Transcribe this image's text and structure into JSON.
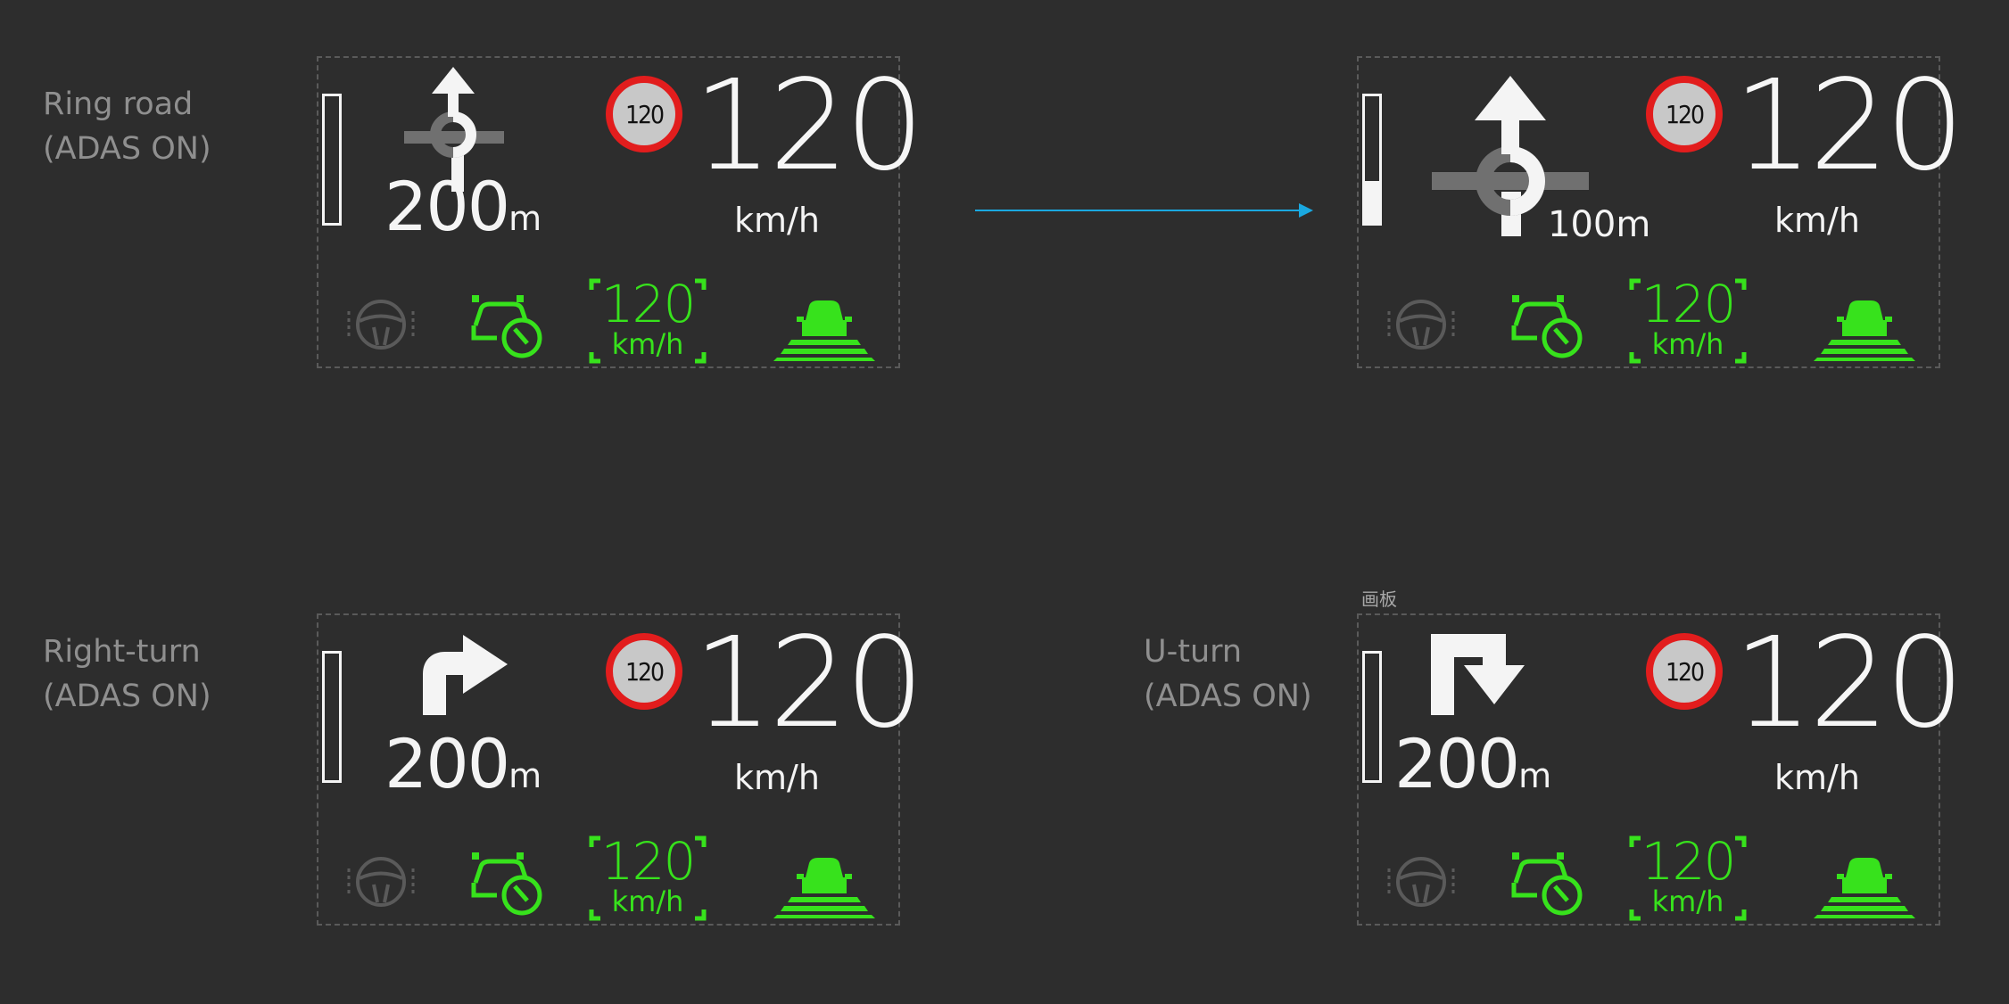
{
  "captions": {
    "ring_road": [
      "Ring road",
      "(ADAS ON)"
    ],
    "right_turn": [
      "Right-turn",
      "(ADAS ON)"
    ],
    "u_turn": [
      "U-turn",
      "(ADAS ON)"
    ]
  },
  "frame_tag": "画板",
  "transition_arrow_color": "#1aa8e0",
  "panels": [
    {
      "id": "ring-road-200",
      "maneuver": "roundabout-straight-icon",
      "distance_value": "200",
      "distance_unit": "m",
      "gauge_fill": 0.0,
      "speed_limit": "120",
      "speed": "120",
      "speed_unit": "km/h",
      "acc_speed": "120",
      "acc_unit": "km/h"
    },
    {
      "id": "ring-road-100",
      "maneuver": "roundabout-straight-icon",
      "distance_text": "100m",
      "gauge_fill": 0.33,
      "speed_limit": "120",
      "speed": "120",
      "speed_unit": "km/h",
      "acc_speed": "120",
      "acc_unit": "km/h"
    },
    {
      "id": "right-turn",
      "maneuver": "right-turn-arrow-icon",
      "distance_value": "200",
      "distance_unit": "m",
      "gauge_fill": 0.0,
      "speed_limit": "120",
      "speed": "120",
      "speed_unit": "km/h",
      "acc_speed": "120",
      "acc_unit": "km/h"
    },
    {
      "id": "u-turn",
      "maneuver": "u-turn-arrow-icon",
      "distance_value": "200",
      "distance_unit": "m",
      "gauge_fill": 0.0,
      "speed_limit": "120",
      "speed": "120",
      "speed_unit": "km/h",
      "acc_speed": "120",
      "acc_unit": "km/h"
    }
  ],
  "colors": {
    "adas_green": "#37e21c",
    "limit_red": "#e21d1d",
    "text_white": "#f4f4f4",
    "inactive_gray": "#5a5a5a"
  }
}
